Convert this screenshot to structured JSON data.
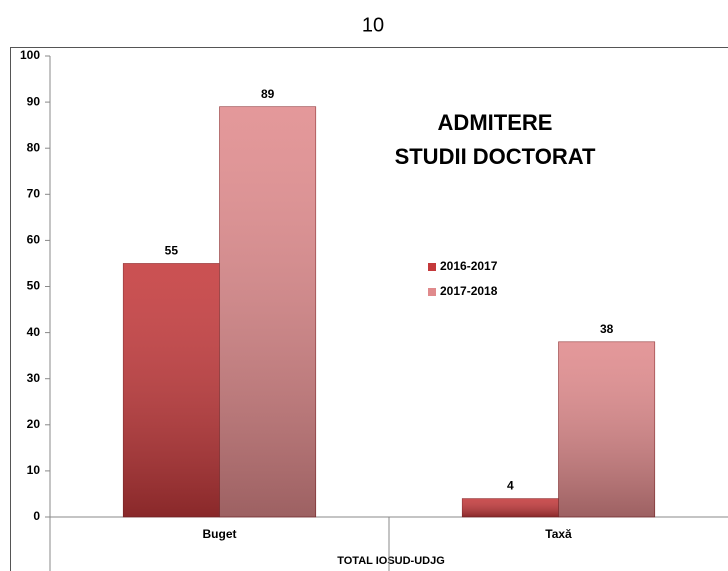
{
  "page_number": "10",
  "chart_data": {
    "type": "bar",
    "title": [
      "ADMITERE",
      "STUDII DOCTORAT"
    ],
    "xlabel": "TOTAL IOSUD-UDJG",
    "categories": [
      "Buget",
      "Taxă"
    ],
    "series": [
      {
        "name": "2016-2017",
        "color": "#c4393b",
        "values": [
          55,
          4
        ]
      },
      {
        "name": "2017-2018",
        "color": "#e08a8c",
        "values": [
          89,
          38
        ]
      }
    ],
    "ylim": [
      0,
      100
    ],
    "yticks": [
      0,
      10,
      20,
      30,
      40,
      50,
      60,
      70,
      80,
      90,
      100
    ],
    "grid": false,
    "legend": "center"
  }
}
